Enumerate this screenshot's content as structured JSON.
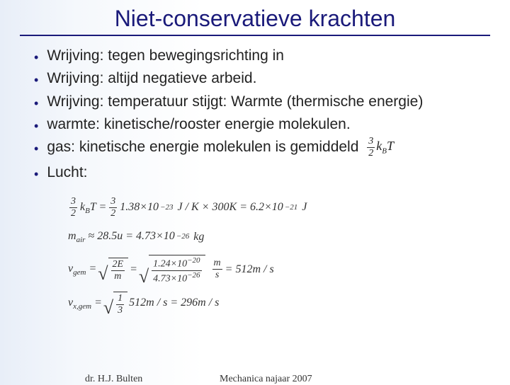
{
  "title": "Niet-conservatieve krachten",
  "bullets": [
    "Wrijving: tegen bewegingsrichting in",
    "Wrijving: altijd negatieve arbeid.",
    "Wrijving: temperatuur stijgt: Warmte (thermische energie)",
    "warmte: kinetische/rooster energie molekulen.",
    "gas: kinetische energie molekulen is gemiddeld",
    " Lucht:"
  ],
  "inline_formula": {
    "frac_num": "3",
    "frac_den": "2",
    "rest": "k_B T"
  },
  "formulas": {
    "line1": {
      "lhs_frac": {
        "num": "3",
        "den": "2"
      },
      "kbt": "k_B T",
      "eq_frac": {
        "num": "3",
        "den": "2"
      },
      "const": "1.38×10",
      "const_exp": "−23",
      "unit1": "J / K × 300K = 6.2×10",
      "exp2": "−21",
      "unit2": "J"
    },
    "line2": {
      "lhs": "m_air ≈ 28.5u = 4.73×10",
      "exp": "−26",
      "unit": "kg"
    },
    "line3": {
      "lhs": "v_gem",
      "frac_in": {
        "num": "2E",
        "den": "m"
      },
      "mid_num": "1.24×10",
      "mid_num_exp": "−20",
      "mid_den": "4.73×10",
      "mid_den_exp": "−26",
      "unit_frac": {
        "num": "m",
        "den": "s"
      },
      "result": " = 512m / s"
    },
    "line4": {
      "lhs": "v_x,gem",
      "frac_in": {
        "num": "1",
        "den": "3"
      },
      "rest": "512m / s = 296m / s"
    }
  },
  "footer": {
    "left": "dr. H.J. Bulten",
    "center": "Mechanica najaar 2007"
  },
  "colors": {
    "title": "#1a1a7a",
    "text": "#222222",
    "bg_start": "#e8eef8",
    "bg_end": "#ffffff"
  }
}
